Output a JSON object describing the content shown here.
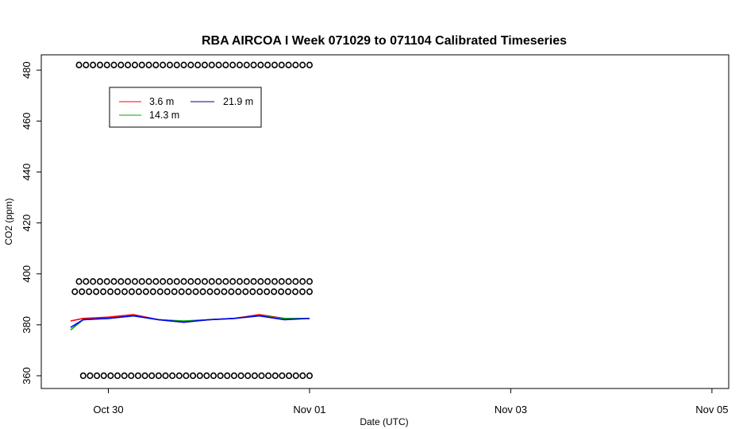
{
  "chart_data": {
    "type": "line",
    "title": "RBA AIRCOA I  Week 071029 to 071104  Calibrated Timeseries",
    "xlabel": "Date (UTC)",
    "ylabel": "CO2 (ppm)",
    "x_unit": "days",
    "xlim": [
      "2007-10-29 08:00",
      "2007-11-05 04:00"
    ],
    "ylim": [
      355,
      486
    ],
    "x_ticks": [
      {
        "label": "Oct 30",
        "value": "2007-10-30 00:00"
      },
      {
        "label": "Nov 01",
        "value": "2007-11-01 00:00"
      },
      {
        "label": "Nov 03",
        "value": "2007-11-03 00:00"
      },
      {
        "label": "Nov 05",
        "value": "2007-11-05 00:00"
      }
    ],
    "y_ticks": [
      360,
      380,
      400,
      420,
      440,
      460,
      480
    ],
    "grid": false,
    "legend": {
      "placement": "top-left",
      "entries": [
        {
          "name": "3.6 m",
          "color": "#ff0000"
        },
        {
          "name": "21.9 m",
          "color": "#000080"
        },
        {
          "name": "14.3 m",
          "color": "#00aa00"
        }
      ]
    },
    "series": [
      {
        "name": "3.6 m",
        "color": "#ff0000",
        "x": [
          "2007-10-29 15:00",
          "2007-10-29 18:00",
          "2007-10-30 00:00",
          "2007-10-30 06:00",
          "2007-10-30 12:00",
          "2007-10-30 18:00",
          "2007-10-31 00:00",
          "2007-10-31 06:00",
          "2007-10-31 12:00",
          "2007-10-31 18:00",
          "2007-11-01 00:00"
        ],
        "y": [
          381.5,
          382.5,
          383,
          384,
          382,
          381,
          382,
          382.5,
          384,
          382.5,
          382.5
        ]
      },
      {
        "name": "14.3 m",
        "color": "#00aa00",
        "x": [
          "2007-10-29 15:00",
          "2007-10-29 18:00",
          "2007-10-30 00:00",
          "2007-10-30 06:00",
          "2007-10-30 12:00",
          "2007-10-30 18:00",
          "2007-10-31 00:00",
          "2007-10-31 06:00",
          "2007-10-31 12:00",
          "2007-10-31 18:00",
          "2007-11-01 00:00"
        ],
        "y": [
          378,
          382,
          382.5,
          383.5,
          382,
          381.5,
          382,
          382.5,
          383.5,
          382.5,
          382.5
        ]
      },
      {
        "name": "21.9 m",
        "color": "#0000ff",
        "x": [
          "2007-10-29 15:00",
          "2007-10-29 18:00",
          "2007-10-30 00:00",
          "2007-10-30 06:00",
          "2007-10-30 12:00",
          "2007-10-30 18:00",
          "2007-10-31 00:00",
          "2007-10-31 06:00",
          "2007-10-31 12:00",
          "2007-10-31 18:00",
          "2007-11-01 00:00"
        ],
        "y": [
          379,
          382,
          382.5,
          383.5,
          382,
          381,
          382,
          382.5,
          383.5,
          382,
          382.5
        ]
      }
    ],
    "marker_series": [
      {
        "y": 482,
        "x_start": "2007-10-29 17:00",
        "x_end": "2007-11-01 00:00",
        "count": 34,
        "marker": "circle"
      },
      {
        "y": 397,
        "x_start": "2007-10-29 17:00",
        "x_end": "2007-11-01 00:00",
        "count": 34,
        "marker": "circle"
      },
      {
        "y": 393,
        "x_start": "2007-10-29 16:00",
        "x_end": "2007-11-01 00:00",
        "count": 34,
        "marker": "circle"
      },
      {
        "y": 360,
        "x_start": "2007-10-29 18:00",
        "x_end": "2007-11-01 00:00",
        "count": 34,
        "marker": "circle"
      }
    ]
  }
}
